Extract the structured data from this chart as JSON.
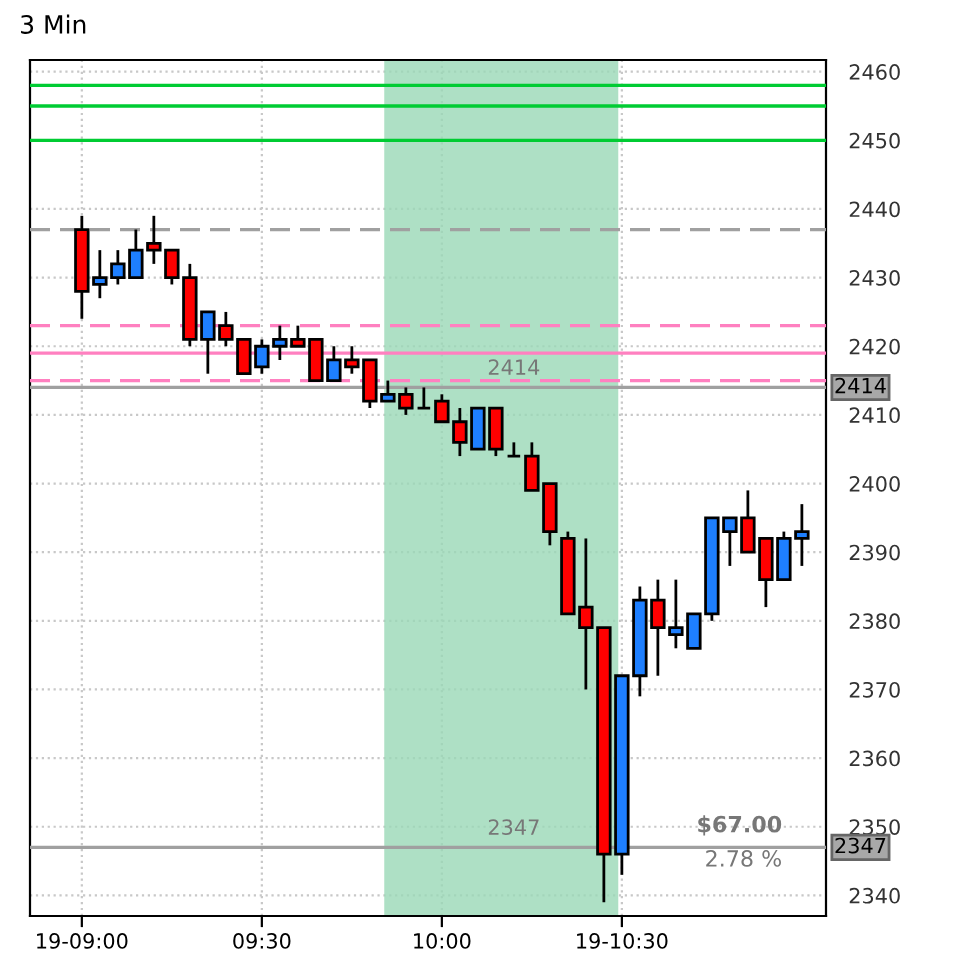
{
  "chart_data": {
    "type": "candlestick",
    "title": "3 Min",
    "x": [
      9.0,
      9.05,
      9.1,
      9.15,
      9.2,
      9.25,
      9.3,
      9.35,
      9.4,
      9.45,
      9.5,
      9.55,
      9.6,
      9.65,
      9.7,
      9.75,
      9.8,
      9.85,
      9.9,
      9.95,
      10.0,
      10.05,
      10.1,
      10.15,
      10.2,
      10.25,
      10.3,
      10.35,
      10.4,
      10.45,
      10.5,
      10.55,
      10.6,
      10.65,
      10.7,
      10.75,
      10.8,
      10.85,
      10.9,
      10.95,
      11.0
    ],
    "ohlc": [
      [
        2437,
        2439,
        2424,
        2428
      ],
      [
        2429,
        2434,
        2427,
        2430
      ],
      [
        2430,
        2434,
        2429,
        2432
      ],
      [
        2430,
        2437,
        2430,
        2434
      ],
      [
        2435,
        2439,
        2432,
        2434
      ],
      [
        2434,
        2434,
        2429,
        2430
      ],
      [
        2430,
        2432,
        2420,
        2421
      ],
      [
        2421,
        2425,
        2416,
        2425
      ],
      [
        2423,
        2425,
        2420,
        2421
      ],
      [
        2421,
        2421,
        2416,
        2416
      ],
      [
        2417,
        2421,
        2416,
        2420
      ],
      [
        2420,
        2423,
        2418,
        2421
      ],
      [
        2421,
        2423,
        2420,
        2420
      ],
      [
        2421,
        2421,
        2415,
        2415
      ],
      [
        2415,
        2420,
        2415,
        2418
      ],
      [
        2418,
        2420,
        2416,
        2417
      ],
      [
        2418,
        2418,
        2411,
        2412
      ],
      [
        2412,
        2415,
        2412,
        2413
      ],
      [
        2413,
        2414,
        2410,
        2411
      ],
      [
        2411,
        2414,
        2411,
        2411
      ],
      [
        2412,
        2413,
        2409,
        2409
      ],
      [
        2409,
        2411,
        2404,
        2406
      ],
      [
        2405,
        2411,
        2405,
        2411
      ],
      [
        2411,
        2411,
        2404,
        2405
      ],
      [
        2404,
        2406,
        2404,
        2404
      ],
      [
        2404,
        2406,
        2399,
        2399
      ],
      [
        2400,
        2400,
        2391,
        2393
      ],
      [
        2392,
        2393,
        2381,
        2381
      ],
      [
        2382,
        2392,
        2370,
        2379
      ],
      [
        2379,
        2379,
        2339,
        2346
      ],
      [
        2346,
        2372,
        2343,
        2372
      ],
      [
        2372,
        2385,
        2369,
        2383
      ],
      [
        2383,
        2386,
        2372,
        2379
      ],
      [
        2378,
        2386,
        2376,
        2379
      ],
      [
        2376,
        2381,
        2376,
        2381
      ],
      [
        2381,
        2395,
        2380,
        2395
      ],
      [
        2393,
        2395,
        2388,
        2395
      ],
      [
        2395,
        2399,
        2390,
        2390
      ],
      [
        2392,
        2392,
        2382,
        2386
      ],
      [
        2386,
        2393,
        2386,
        2392
      ],
      [
        2392,
        2397,
        2388,
        2393
      ]
    ],
    "colors": [
      "#ff0000",
      "#1e7fff",
      "#1e7fff",
      "#1e7fff",
      "#ff0000",
      "#ff0000",
      "#ff0000",
      "#1e7fff",
      "#ff0000",
      "#ff0000",
      "#1e7fff",
      "#1e7fff",
      "#ff0000",
      "#ff0000",
      "#1e7fff",
      "#ff0000",
      "#ff0000",
      "#1e7fff",
      "#ff0000",
      "#000000",
      "#ff0000",
      "#ff0000",
      "#1e7fff",
      "#ff0000",
      "#000000",
      "#ff0000",
      "#ff0000",
      "#ff0000",
      "#ff0000",
      "#ff0000",
      "#1e7fff",
      "#1e7fff",
      "#ff0000",
      "#1e7fff",
      "#1e7fff",
      "#1e7fff",
      "#1e7fff",
      "#ff0000",
      "#ff0000",
      "#1e7fff",
      "#1e7fff"
    ],
    "xlim": [
      8.856,
      11.067
    ],
    "xticks": [
      {
        "value": 9.0,
        "label": "19-09:00"
      },
      {
        "value": 9.5,
        "label": "09:30"
      },
      {
        "value": 10.0,
        "label": "10:00"
      },
      {
        "value": 10.5,
        "label": "19-10:30"
      }
    ],
    "ylim": [
      2337,
      2461.7
    ],
    "yticks": [
      2340,
      2350,
      2360,
      2370,
      2380,
      2390,
      2400,
      2410,
      2420,
      2430,
      2440,
      2450,
      2460
    ],
    "grid": true,
    "ref_lines": [
      {
        "axis": "y",
        "value": 2458,
        "color": "#00cc33",
        "line_style": "solid"
      },
      {
        "axis": "y",
        "value": 2455,
        "color": "#00cc33",
        "line_style": "solid"
      },
      {
        "axis": "y",
        "value": 2450,
        "color": "#00cc33",
        "line_style": "solid"
      },
      {
        "axis": "y",
        "value": 2437,
        "color": "#a0a0a0",
        "line_style": "dashed"
      },
      {
        "axis": "y",
        "value": 2423,
        "color": "#ff80c0",
        "line_style": "dashed"
      },
      {
        "axis": "y",
        "value": 2419,
        "color": "#ff80c0",
        "line_style": "solid"
      },
      {
        "axis": "y",
        "value": 2415,
        "color": "#ff80c0",
        "line_style": "dashed"
      },
      {
        "axis": "y",
        "value": 2414,
        "label": "2414",
        "color": "#a0a0a0",
        "line_style": "solid"
      },
      {
        "axis": "y",
        "value": 2347,
        "label": "2347",
        "color": "#a0a0a0",
        "line_style": "solid"
      }
    ],
    "bands": [
      {
        "axis": "x",
        "from": 9.84,
        "to": 10.49,
        "color": "#9ad8b6"
      }
    ],
    "annotations": [
      "$67.00",
      "2.78 %"
    ]
  }
}
